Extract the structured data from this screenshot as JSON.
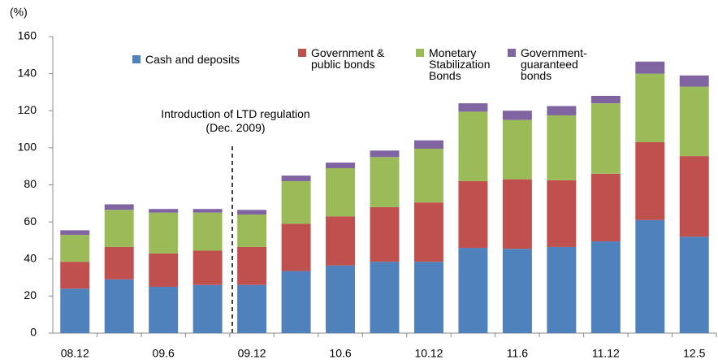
{
  "chart_data": {
    "type": "bar",
    "stacked": true,
    "y_label": "(%)",
    "annotation": "Introduction of LTD regulation (Dec. 2009)",
    "categories": [
      "08.12",
      null,
      "09.6",
      null,
      "09.12",
      null,
      "10.6",
      null,
      "10.12",
      null,
      "11.6",
      null,
      "11.12",
      null,
      "12.5"
    ],
    "series": [
      {
        "name": "Cash and deposits",
        "color": "#4f81bd",
        "values": [
          24,
          29,
          25,
          26,
          26,
          33.5,
          36.5,
          38.5,
          38.5,
          46,
          45.5,
          46.5,
          49.5,
          61,
          52
        ]
      },
      {
        "name": "Government & public bonds",
        "color": "#c0504d",
        "values": [
          14.5,
          17.5,
          18,
          18.5,
          20.5,
          25.5,
          26.5,
          29.5,
          32,
          36,
          37.5,
          36,
          36.5,
          42,
          43.5
        ]
      },
      {
        "name": "Monetary Stabilization Bonds",
        "color": "#9bbb59",
        "values": [
          14.5,
          20,
          22,
          20.5,
          17.5,
          23,
          26,
          27,
          29,
          37.5,
          32,
          35,
          38,
          37,
          37.5
        ]
      },
      {
        "name": "Government-guaranteed bonds",
        "color": "#8064a2",
        "values": [
          2.5,
          3,
          2,
          2,
          2.5,
          3,
          3,
          3.5,
          4.5,
          4.5,
          5,
          5,
          4,
          6.5,
          6
        ]
      }
    ],
    "ylim": [
      0,
      160
    ],
    "yticks": [
      0,
      20,
      40,
      60,
      80,
      100,
      120,
      140,
      160
    ],
    "grid": false
  }
}
